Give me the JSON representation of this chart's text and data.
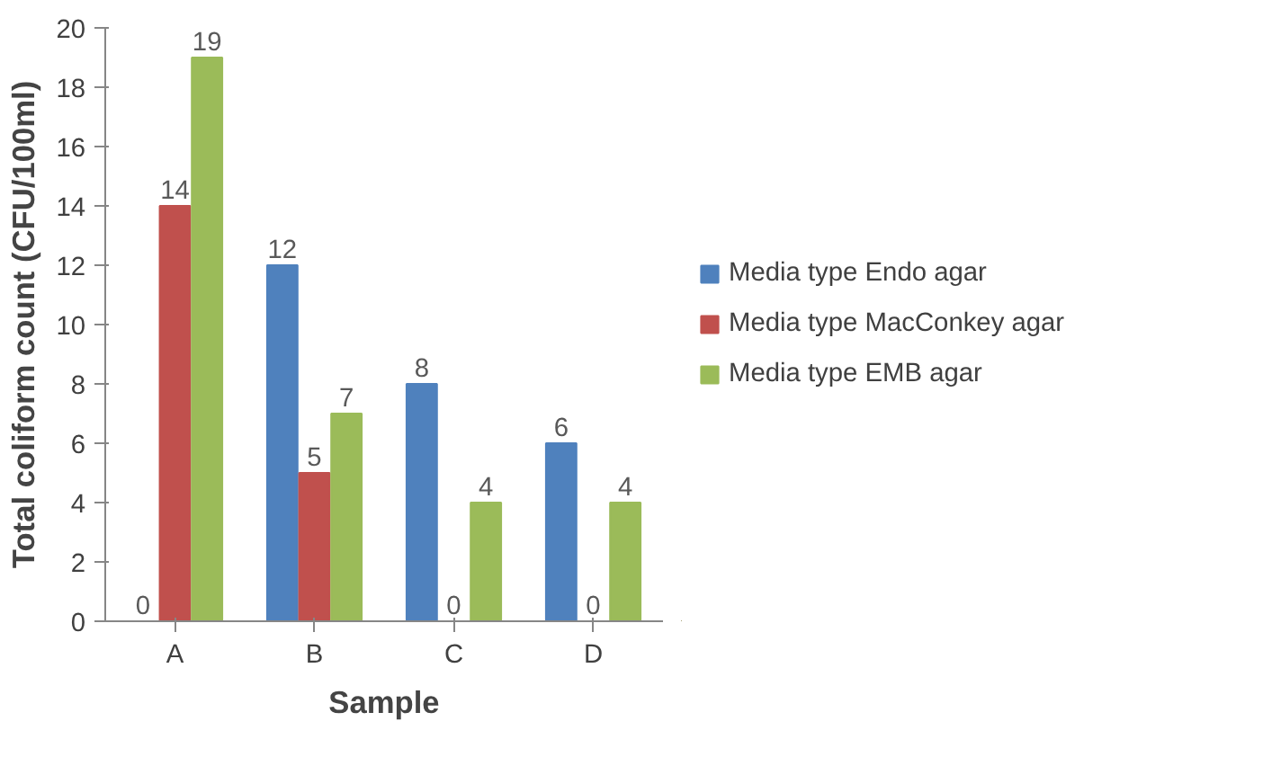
{
  "chart_data": {
    "type": "bar",
    "xlabel": "Sample",
    "ylabel": "Total coliform count (CFU/100ml)",
    "categories": [
      "A",
      "B",
      "C",
      "D"
    ],
    "series": [
      {
        "name": "Media type Endo agar",
        "color": "#4f81bd",
        "values": [
          0,
          12,
          8,
          6
        ]
      },
      {
        "name": "Media type MacConkey agar",
        "color": "#c0504d",
        "values": [
          14,
          5,
          0,
          0
        ]
      },
      {
        "name": "Media type EMB agar",
        "color": "#9bbb59",
        "values": [
          19,
          7,
          4,
          4
        ]
      }
    ],
    "ylim": [
      0,
      20
    ],
    "yticks": [
      0,
      2,
      4,
      6,
      8,
      10,
      12,
      14,
      16,
      18,
      20
    ],
    "grid": false,
    "legend": "right",
    "data_labels": true
  }
}
